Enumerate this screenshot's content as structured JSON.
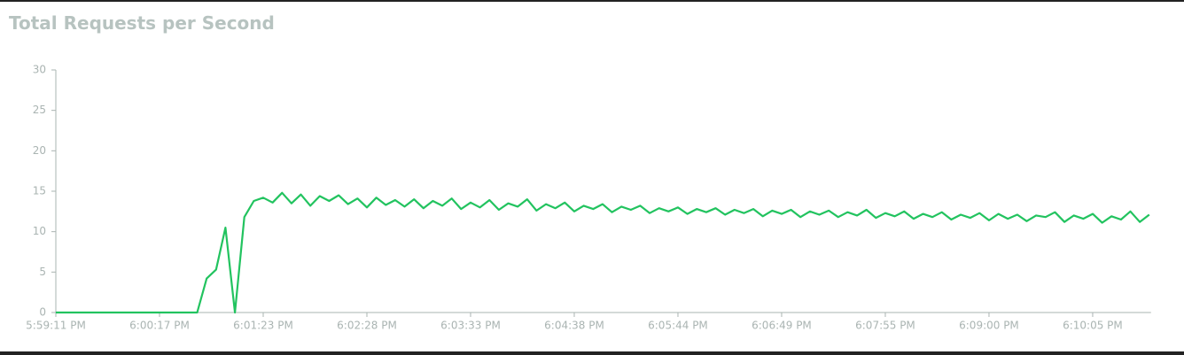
{
  "chart_data": {
    "type": "line",
    "title": "Total Requests per Second",
    "categories": [
      "5:59:11 PM",
      null,
      null,
      null,
      null,
      null,
      null,
      null,
      null,
      null,
      null,
      "6:00:17 PM",
      null,
      null,
      null,
      null,
      null,
      null,
      null,
      null,
      null,
      null,
      "6:01:23 PM",
      null,
      null,
      null,
      null,
      null,
      null,
      null,
      null,
      null,
      null,
      "6:02:28 PM",
      null,
      null,
      null,
      null,
      null,
      null,
      null,
      null,
      null,
      null,
      "6:03:33 PM",
      null,
      null,
      null,
      null,
      null,
      null,
      null,
      null,
      null,
      null,
      "6:04:38 PM",
      null,
      null,
      null,
      null,
      null,
      null,
      null,
      null,
      null,
      null,
      "6:05:44 PM",
      null,
      null,
      null,
      null,
      null,
      null,
      null,
      null,
      null,
      null,
      "6:06:49 PM",
      null,
      null,
      null,
      null,
      null,
      null,
      null,
      null,
      null,
      null,
      "6:07:55 PM",
      null,
      null,
      null,
      null,
      null,
      null,
      null,
      null,
      null,
      null,
      "6:09:00 PM",
      null,
      null,
      null,
      null,
      null,
      null,
      null,
      null,
      null,
      null,
      "6:10:05 PM",
      null,
      null,
      null,
      null,
      null,
      null
    ],
    "series": [
      {
        "color": "#22c35f",
        "values": [
          0,
          0,
          0,
          0,
          0,
          0,
          0,
          0,
          0,
          0,
          0,
          0,
          0,
          0,
          0,
          0,
          4.2,
          5.3,
          10.5,
          0,
          11.8,
          13.8,
          14.2,
          13.6,
          14.8,
          13.5,
          14.6,
          13.2,
          14.4,
          13.8,
          14.5,
          13.4,
          14.1,
          13,
          14.2,
          13.3,
          13.9,
          13.1,
          14,
          12.9,
          13.8,
          13.2,
          14.1,
          12.8,
          13.6,
          13,
          13.9,
          12.7,
          13.5,
          13.1,
          14,
          12.6,
          13.4,
          12.9,
          13.6,
          12.5,
          13.2,
          12.8,
          13.4,
          12.4,
          13.1,
          12.7,
          13.2,
          12.3,
          12.9,
          12.5,
          13,
          12.2,
          12.8,
          12.4,
          12.9,
          12.1,
          12.7,
          12.3,
          12.8,
          11.9,
          12.6,
          12.2,
          12.7,
          11.8,
          12.5,
          12.1,
          12.6,
          11.8,
          12.4,
          12,
          12.7,
          11.7,
          12.3,
          11.9,
          12.5,
          11.6,
          12.2,
          11.8,
          12.4,
          11.5,
          12.1,
          11.7,
          12.3,
          11.4,
          12.2,
          11.6,
          12.1,
          11.3,
          12,
          11.8,
          12.4,
          11.2,
          12,
          11.6,
          12.2,
          11.1,
          11.9,
          11.5,
          12.5,
          11.2,
          12.1
        ]
      }
    ],
    "ylim": [
      0,
      30
    ],
    "yticks": [
      0,
      5,
      10,
      15,
      20,
      25,
      30
    ],
    "grid": false
  }
}
